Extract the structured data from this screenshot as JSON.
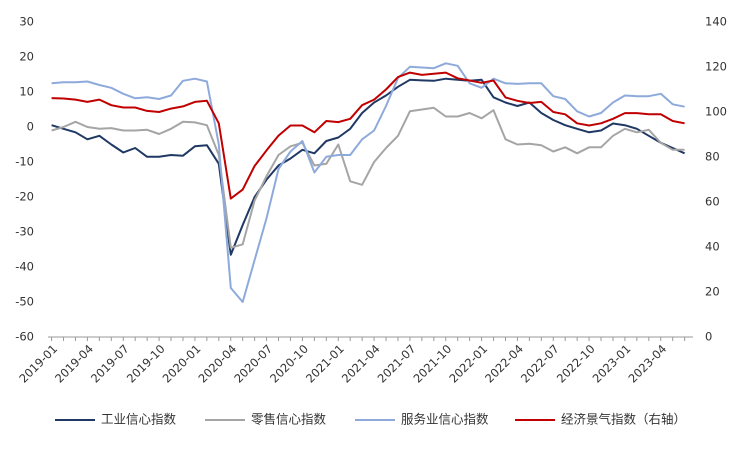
{
  "chart_data": {
    "type": "line",
    "categories": [
      "2019-01",
      null,
      null,
      "2019-04",
      null,
      null,
      "2019-07",
      null,
      null,
      "2019-10",
      null,
      null,
      "2020-01",
      null,
      null,
      "2020-04",
      null,
      null,
      "2020-07",
      null,
      null,
      "2020-10",
      null,
      null,
      "2021-01",
      null,
      null,
      "2021-04",
      null,
      null,
      "2021-07",
      null,
      null,
      "2021-10",
      null,
      null,
      "2022-01",
      null,
      null,
      "2022-04",
      null,
      null,
      "2022-07",
      null,
      null,
      "2022-10",
      null,
      null,
      "2023-01",
      null,
      null,
      "2023-04",
      null,
      null
    ],
    "series": [
      {
        "name": "工业信心指数",
        "color": "#1f3864",
        "values": [
          0.5,
          -0.5,
          -1.5,
          -3.5,
          -2.5,
          -5,
          -7.3,
          -6,
          -8.5,
          -8.5,
          -8,
          -8.2,
          -5.5,
          -5.2,
          -10.5,
          -36.5,
          -28,
          -20,
          -15,
          -11,
          -9,
          -6.5,
          -7.5,
          -4,
          -3,
          -0.5,
          4,
          7,
          9,
          11.5,
          13.5,
          13.3,
          13.2,
          13.8,
          13.5,
          13.2,
          13.5,
          8.5,
          7,
          6,
          7,
          4,
          2,
          0.5,
          -0.5,
          -1.5,
          -1,
          1,
          0.5,
          -0.5,
          -2.5,
          -4.5,
          -6,
          -7.5
        ]
      },
      {
        "name": "零售信心指数",
        "color": "#a5a5a5",
        "values": [
          -1,
          0,
          1.5,
          0,
          -0.5,
          -0.3,
          -1,
          -1,
          -0.8,
          -2,
          -0.5,
          1.5,
          1.3,
          0.5,
          -8,
          -34.5,
          -33.5,
          -21,
          -14,
          -8,
          -5.5,
          -4.5,
          -11,
          -10.5,
          -5,
          -15.5,
          -16.5,
          -10,
          -6,
          -2.5,
          4.5,
          5,
          5.5,
          3,
          3,
          4,
          2.5,
          4.8,
          -3.5,
          -5,
          -4.8,
          -5.2,
          -7,
          -5.8,
          -7.5,
          -5.8,
          -5.8,
          -2.5,
          -0.5,
          -1.5,
          -0.8,
          -4.5,
          -6.5,
          -6.5
        ]
      },
      {
        "name": "服务业信心指数",
        "color": "#8eaadb",
        "values": [
          12.5,
          12.8,
          12.8,
          13,
          12,
          11.2,
          9.5,
          8.2,
          8.5,
          8,
          9,
          13.2,
          13.8,
          13,
          -5,
          -46,
          -50,
          -38,
          -26,
          -12,
          -7,
          -4,
          -13,
          -8.5,
          -8,
          -8,
          -3.5,
          -1,
          6,
          14,
          17.2,
          17,
          16.8,
          18.2,
          17.5,
          12.5,
          11.2,
          13.8,
          12.5,
          12.3,
          12.5,
          12.5,
          8.8,
          8,
          4.5,
          3,
          4,
          7,
          9,
          8.8,
          8.8,
          9.5,
          6.5,
          5.8
        ]
      },
      {
        "name": "经济景气指数（右轴）",
        "color": "#c00000",
        "axis": "y2",
        "values": [
          106.2,
          106,
          105.5,
          104.5,
          105.5,
          103,
          102,
          102,
          100.5,
          100,
          101.5,
          102.5,
          104.5,
          105,
          95,
          61.5,
          65.5,
          76,
          83,
          89.5,
          94,
          94,
          91,
          96,
          95.5,
          97,
          103,
          105.5,
          110,
          115.5,
          117.5,
          116.5,
          117,
          117.5,
          115,
          114,
          113,
          114,
          106.5,
          105,
          104,
          104.5,
          100,
          99,
          95,
          94,
          95,
          97,
          99.5,
          99.5,
          99,
          99,
          96,
          95
        ]
      }
    ],
    "ylim": [
      -60,
      30
    ],
    "yticks": [
      -60,
      -50,
      -40,
      -30,
      -20,
      -10,
      0,
      10,
      20,
      30
    ],
    "y2lim": [
      0,
      140
    ],
    "y2ticks": [
      0,
      20,
      40,
      60,
      80,
      100,
      120,
      140
    ],
    "grid": false,
    "legend": "bottom"
  }
}
